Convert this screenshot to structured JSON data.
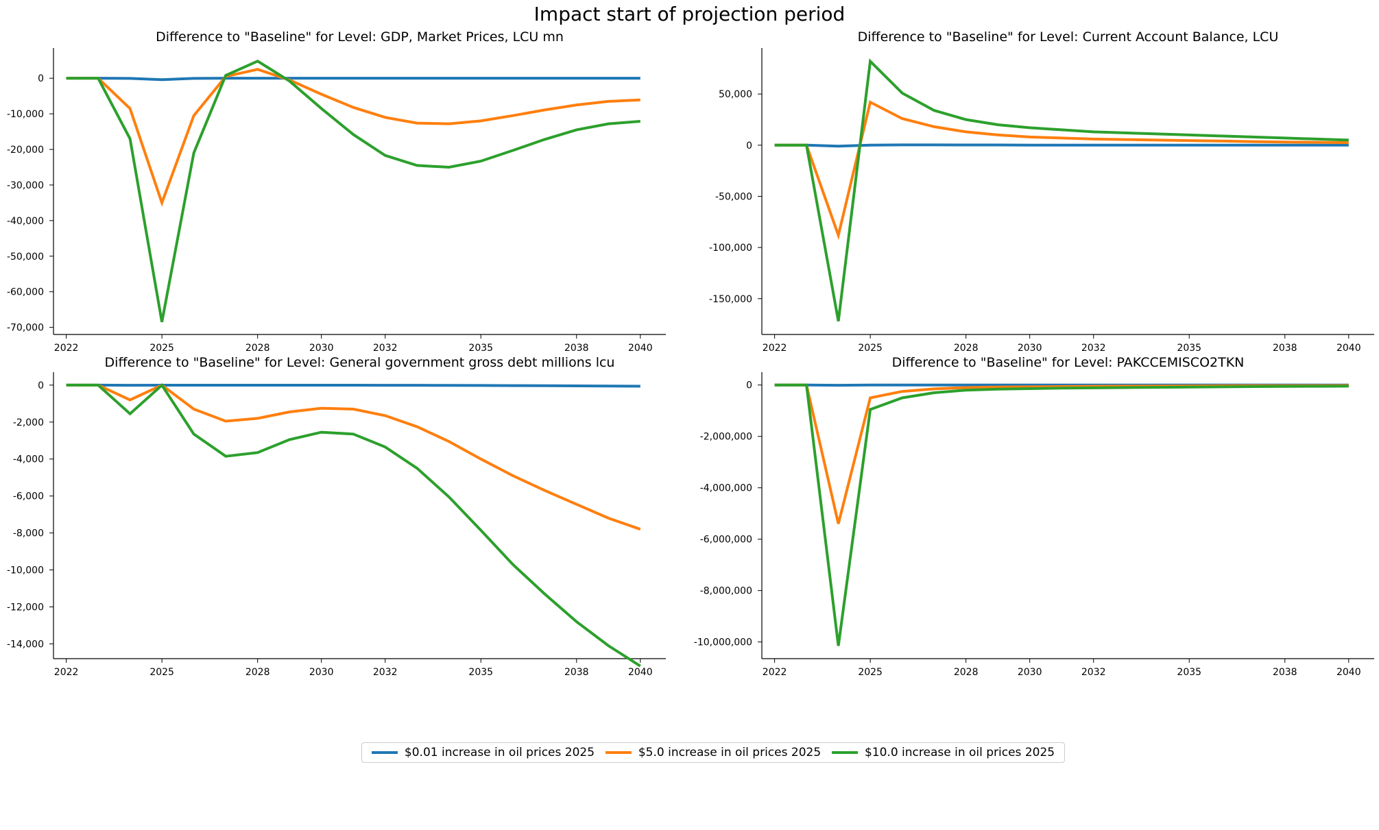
{
  "figure": {
    "title": "Impact start of projection period"
  },
  "legend": [
    {
      "label": "$0.01 increase in oil prices 2025",
      "color": "#1f77b4"
    },
    {
      "label": "$5.0 increase in oil prices 2025",
      "color": "#ff7f0e"
    },
    {
      "label": "$10.0 increase in oil prices 2025",
      "color": "#2ca02c"
    }
  ],
  "chart_data": [
    {
      "type": "line",
      "title": "Difference to \"Baseline\" for Level: GDP, Market Prices, LCU mn",
      "xlabel": "",
      "ylabel": "",
      "xlim": [
        2021.6,
        2040.8
      ],
      "ylim": [
        -72000,
        8500
      ],
      "x_ticks": [
        2022,
        2025,
        2028,
        2030,
        2032,
        2035,
        2038,
        2040
      ],
      "x_tick_labels": [
        "2022",
        "2025",
        "2028",
        "2030",
        "2032",
        "2035",
        "2038",
        "2040"
      ],
      "y_ticks": [
        0,
        -10000,
        -20000,
        -30000,
        -40000,
        -50000,
        -60000,
        -70000
      ],
      "y_tick_labels": [
        "0",
        "-10,000",
        "-20,000",
        "-30,000",
        "-40,000",
        "-50,000",
        "-60,000",
        "-70,000"
      ],
      "x": [
        2022,
        2023,
        2024,
        2025,
        2026,
        2027,
        2028,
        2029,
        2030,
        2031,
        2032,
        2033,
        2034,
        2035,
        2036,
        2037,
        2038,
        2039,
        2040
      ],
      "series": [
        {
          "name": "$0.01 increase in oil prices 2025",
          "color": "#1f77b4",
          "values": [
            0,
            0,
            -50,
            -400,
            -50,
            0,
            0,
            0,
            0,
            0,
            0,
            0,
            0,
            0,
            0,
            0,
            0,
            0,
            0
          ]
        },
        {
          "name": "$5.0 increase in oil prices 2025",
          "color": "#ff7f0e",
          "values": [
            0,
            0,
            -8500,
            -35000,
            -10500,
            500,
            2500,
            -500,
            -4500,
            -8200,
            -11000,
            -12600,
            -12800,
            -12000,
            -10500,
            -8900,
            -7500,
            -6500,
            -6100
          ]
        },
        {
          "name": "$10.0 increase in oil prices 2025",
          "color": "#2ca02c",
          "values": [
            0,
            0,
            -17000,
            -68500,
            -21000,
            800,
            4800,
            -800,
            -8500,
            -15800,
            -21700,
            -24500,
            -25000,
            -23300,
            -20300,
            -17200,
            -14500,
            -12800,
            -12100
          ]
        }
      ]
    },
    {
      "type": "line",
      "title": "Difference to \"Baseline\" for Level: Current Account Balance, LCU",
      "xlabel": "",
      "ylabel": "",
      "xlim": [
        2021.6,
        2040.8
      ],
      "ylim": [
        -185000,
        95000
      ],
      "x_ticks": [
        2022,
        2025,
        2028,
        2030,
        2032,
        2035,
        2038,
        2040
      ],
      "x_tick_labels": [
        "2022",
        "2025",
        "2028",
        "2030",
        "2032",
        "2035",
        "2038",
        "2040"
      ],
      "y_ticks": [
        50000,
        0,
        -50000,
        -100000,
        -150000
      ],
      "y_tick_labels": [
        "50,000",
        "0",
        "-50,000",
        "-100,000",
        "-150,000"
      ],
      "x": [
        2022,
        2023,
        2024,
        2025,
        2026,
        2027,
        2028,
        2029,
        2030,
        2031,
        2032,
        2033,
        2034,
        2035,
        2036,
        2037,
        2038,
        2039,
        2040
      ],
      "series": [
        {
          "name": "$0.01 increase in oil prices 2025",
          "color": "#1f77b4",
          "values": [
            0,
            0,
            -1000,
            0,
            300,
            300,
            200,
            200,
            100,
            100,
            100,
            100,
            0,
            0,
            0,
            0,
            0,
            0,
            0
          ]
        },
        {
          "name": "$5.0 increase in oil prices 2025",
          "color": "#ff7f0e",
          "values": [
            0,
            0,
            -88000,
            42000,
            26000,
            18000,
            13000,
            10000,
            8000,
            7000,
            6000,
            5500,
            5000,
            4500,
            4000,
            3500,
            3000,
            2800,
            2500
          ]
        },
        {
          "name": "$10.0 increase in oil prices 2025",
          "color": "#2ca02c",
          "values": [
            0,
            0,
            -172000,
            82000,
            51000,
            34000,
            25000,
            20000,
            17000,
            15000,
            13000,
            12000,
            11000,
            10000,
            9000,
            8000,
            7000,
            6000,
            5000
          ]
        }
      ]
    },
    {
      "type": "line",
      "title": "Difference to \"Baseline\" for Level: General government gross debt millions lcu",
      "xlabel": "",
      "ylabel": "",
      "xlim": [
        2021.6,
        2040.8
      ],
      "ylim": [
        -14800,
        700
      ],
      "x_ticks": [
        2022,
        2025,
        2028,
        2030,
        2032,
        2035,
        2038,
        2040
      ],
      "x_tick_labels": [
        "2022",
        "2025",
        "2028",
        "2030",
        "2032",
        "2035",
        "2038",
        "2040"
      ],
      "y_ticks": [
        0,
        -2000,
        -4000,
        -6000,
        -8000,
        -10000,
        -12000,
        -14000
      ],
      "y_tick_labels": [
        "0",
        "-2,000",
        "-4,000",
        "-6,000",
        "-8,000",
        "-10,000",
        "-12,000",
        "-14,000"
      ],
      "x": [
        2022,
        2023,
        2024,
        2025,
        2026,
        2027,
        2028,
        2029,
        2030,
        2031,
        2032,
        2033,
        2034,
        2035,
        2036,
        2037,
        2038,
        2039,
        2040
      ],
      "series": [
        {
          "name": "$0.01 increase in oil prices 2025",
          "color": "#1f77b4",
          "values": [
            0,
            0,
            -10,
            -5,
            -5,
            -5,
            -5,
            -5,
            -5,
            -5,
            -10,
            -10,
            -15,
            -20,
            -25,
            -30,
            -40,
            -50,
            -60
          ]
        },
        {
          "name": "$5.0 increase in oil prices 2025",
          "color": "#ff7f0e",
          "values": [
            0,
            0,
            -800,
            0,
            -1300,
            -1950,
            -1800,
            -1450,
            -1250,
            -1300,
            -1650,
            -2250,
            -3050,
            -4000,
            -4900,
            -5700,
            -6450,
            -7200,
            -7800
          ]
        },
        {
          "name": "$10.0 increase in oil prices 2025",
          "color": "#2ca02c",
          "values": [
            0,
            0,
            -1550,
            -5,
            -2650,
            -3850,
            -3650,
            -2950,
            -2550,
            -2650,
            -3350,
            -4500,
            -6050,
            -7850,
            -9700,
            -11300,
            -12800,
            -14100,
            -15200
          ]
        }
      ]
    },
    {
      "type": "line",
      "title": "Difference to \"Baseline\" for Level: PAKCCEMISCO2TKN",
      "xlabel": "",
      "ylabel": "",
      "xlim": [
        2021.6,
        2040.8
      ],
      "ylim": [
        -10650000,
        500000
      ],
      "x_ticks": [
        2022,
        2025,
        2028,
        2030,
        2032,
        2035,
        2038,
        2040
      ],
      "x_tick_labels": [
        "2022",
        "2025",
        "2028",
        "2030",
        "2032",
        "2035",
        "2038",
        "2040"
      ],
      "y_ticks": [
        0,
        -2000000,
        -4000000,
        -6000000,
        -8000000,
        -10000000
      ],
      "y_tick_labels": [
        "0",
        "-2,000,000",
        "-4,000,000",
        "-6,000,000",
        "-8,000,000",
        "-10,000,000"
      ],
      "x": [
        2022,
        2023,
        2024,
        2025,
        2026,
        2027,
        2028,
        2029,
        2030,
        2031,
        2032,
        2033,
        2034,
        2035,
        2036,
        2037,
        2038,
        2039,
        2040
      ],
      "series": [
        {
          "name": "$0.01 increase in oil prices 2025",
          "color": "#1f77b4",
          "values": [
            0,
            0,
            -10000,
            -1000,
            -500,
            -300,
            -200,
            -100,
            -100,
            -100,
            -100,
            -50,
            -50,
            -50,
            -50,
            -50,
            -50,
            -50,
            -50
          ]
        },
        {
          "name": "$5.0 increase in oil prices 2025",
          "color": "#ff7f0e",
          "values": [
            0,
            0,
            -5400000,
            -500000,
            -250000,
            -150000,
            -100000,
            -80000,
            -70000,
            -60000,
            -50000,
            -45000,
            -40000,
            -35000,
            -30000,
            -28000,
            -25000,
            -22000,
            -20000
          ]
        },
        {
          "name": "$10.0 increase in oil prices 2025",
          "color": "#2ca02c",
          "values": [
            0,
            0,
            -10150000,
            -950000,
            -500000,
            -300000,
            -200000,
            -160000,
            -140000,
            -120000,
            -110000,
            -100000,
            -90000,
            -80000,
            -70000,
            -60000,
            -55000,
            -50000,
            -45000
          ]
        }
      ]
    }
  ]
}
